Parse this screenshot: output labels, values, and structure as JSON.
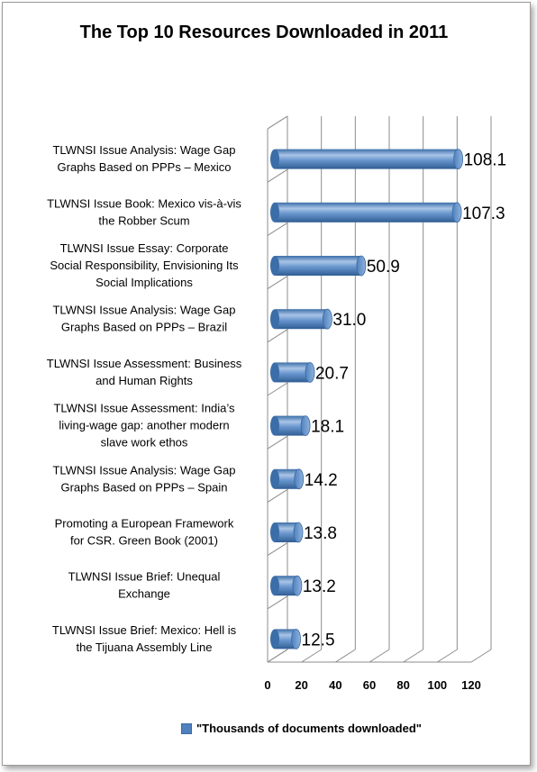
{
  "chart_data": {
    "type": "bar",
    "orientation": "horizontal",
    "title": "The Top 10 Resources Downloaded in 2011",
    "categories": [
      [
        "TLWNSI Issue Analysis:  Wage Gap",
        "Graphs Based on PPPs – Mexico"
      ],
      [
        "TLWNSI Issue Book:  Mexico vis-à-vis",
        "the Robber Scum"
      ],
      [
        "TLWNSI Issue Essay:  Corporate",
        "Social Responsibility, Envisioning Its",
        "Social Implications"
      ],
      [
        "TLWNSI Issue Analysis:  Wage Gap",
        "Graphs Based on PPPs – Brazil"
      ],
      [
        "TLWNSI Issue Assessment:  Business",
        "and Human Rights"
      ],
      [
        "TLWNSI Issue Assessment: India’s",
        "living-wage gap: another modern",
        "slave work ethos"
      ],
      [
        "TLWNSI Issue Analysis:  Wage Gap",
        "Graphs Based on PPPs – Spain"
      ],
      [
        "Promoting a European Framework",
        "for CSR.  Green Book  (2001)"
      ],
      [
        "TLWNSI Issue Brief: Unequal",
        "Exchange"
      ],
      [
        "TLWNSI Issue Brief:  Mexico: Hell is",
        "the Tijuana Assembly Line"
      ]
    ],
    "series": [
      {
        "name": "\"Thousands of documents downloaded\"",
        "color": "#4f81bd",
        "values": [
          108.1,
          107.3,
          50.9,
          31.0,
          20.7,
          18.1,
          14.2,
          13.8,
          13.2,
          12.5
        ],
        "labels": [
          "108.1",
          "107.3",
          "50.9",
          "31.0",
          "20.7",
          "18.1",
          "14.2",
          "13.8",
          "13.2",
          "12.5"
        ]
      }
    ],
    "xlim": [
      0,
      120
    ],
    "xticks": [
      "0",
      "20",
      "40",
      "60",
      "80",
      "100",
      "120"
    ],
    "grid": true,
    "style": "3d-cylinder",
    "legend_position": "bottom"
  }
}
